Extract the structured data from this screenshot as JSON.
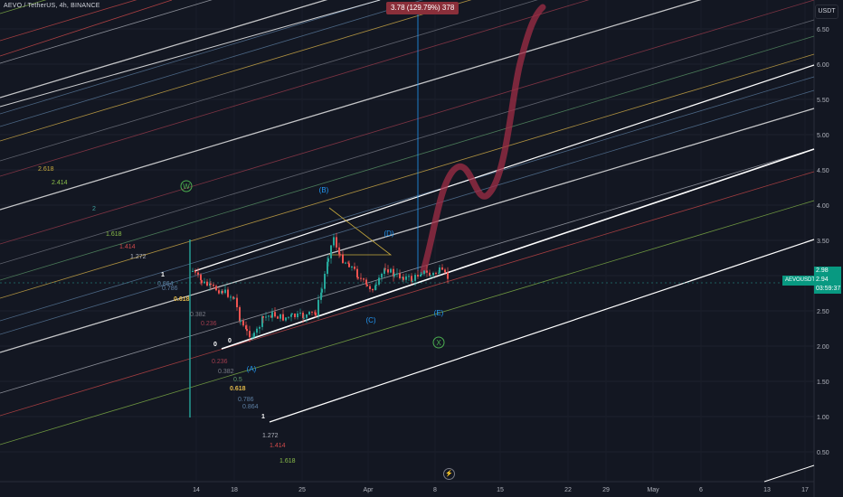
{
  "header": {
    "symbol_line": "AEVO / TetherUS, 4h, BINANCE"
  },
  "measure": {
    "label": "3.78 (129.79%) 378"
  },
  "price_axis": {
    "unit": "USDT",
    "ticks": [
      "6.50",
      "6.00",
      "5.50",
      "5.00",
      "4.50",
      "4.00",
      "3.50",
      "3.00",
      "2.50",
      "2.00",
      "1.50",
      "1.00",
      "0.50"
    ]
  },
  "time_axis": {
    "ticks": [
      "14",
      "18",
      "25",
      "Apr",
      "8",
      "15",
      "22",
      "29",
      "May",
      "6",
      "13",
      "17"
    ]
  },
  "symbol_tag": {
    "label": "AEVOUSDT",
    "price_high": "2.98",
    "price_last": "2.94",
    "countdown": "03:59:37"
  },
  "wave_labels": [
    "W",
    "(B)",
    "(D)",
    "(C)",
    "(E)",
    "X",
    "(A)"
  ],
  "fib_left": [
    {
      "text": "2.618",
      "color": "#c7a93c"
    },
    {
      "text": "2.414",
      "color": "#8bbf4a"
    },
    {
      "text": "2",
      "color": "#3fa3a0"
    },
    {
      "text": "1.618",
      "color": "#8bbf4a"
    },
    {
      "text": "1.414",
      "color": "#d14a4a"
    },
    {
      "text": "1.272",
      "color": "#b2b5be"
    },
    {
      "text": "1",
      "color": "#ffffff"
    },
    {
      "text": "0.864",
      "color": "#5d7fa3"
    },
    {
      "text": "0.786",
      "color": "#5d7fa3"
    },
    {
      "text": "0.618",
      "color": "#e0b84a"
    },
    {
      "text": "0.382",
      "color": "#787b86"
    },
    {
      "text": "0.236",
      "color": "#a13d4e"
    },
    {
      "text": "0",
      "color": "#ffffff"
    }
  ],
  "fib_right": [
    {
      "text": "0",
      "color": "#ffffff"
    },
    {
      "text": "0.236",
      "color": "#a13d4e"
    },
    {
      "text": "0.382",
      "color": "#787b86"
    },
    {
      "text": "0.5",
      "color": "#5d9a6a"
    },
    {
      "text": "0.618",
      "color": "#e0b84a"
    },
    {
      "text": "0.786",
      "color": "#5d7fa3"
    },
    {
      "text": "0.864",
      "color": "#5d7fa3"
    },
    {
      "text": "1",
      "color": "#ffffff"
    },
    {
      "text": "1.272",
      "color": "#b2b5be"
    },
    {
      "text": "1.414",
      "color": "#d14a4a"
    },
    {
      "text": "1.618",
      "color": "#8bbf4a"
    }
  ],
  "colors": {
    "bg": "#131722",
    "up": "#26a69a",
    "down": "#ef5350",
    "projection": "#a02d45",
    "wave": "#2196f3",
    "wave_x": "#4caf50"
  }
}
